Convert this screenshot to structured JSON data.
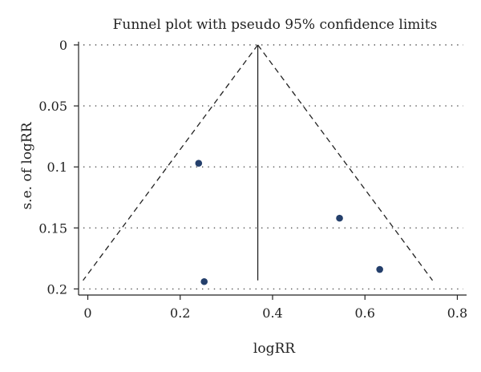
{
  "chart_data": {
    "type": "scatter",
    "title": "Funnel plot with pseudo 95% confidence limits",
    "xlabel": "logRR",
    "ylabel": "s.e. of logRR",
    "xlim": [
      -0.02,
      0.82
    ],
    "ylim": [
      0,
      0.205
    ],
    "y_inverted": true,
    "x_ticks": [
      "0",
      "0.2",
      "0.4",
      "0.6",
      "0.8"
    ],
    "x_tick_values": [
      0,
      0.2,
      0.4,
      0.6,
      0.8
    ],
    "y_ticks": [
      "0",
      "0.05",
      "0.1",
      "0.15",
      "0.2"
    ],
    "y_tick_values": [
      0,
      0.05,
      0.1,
      0.15,
      0.2
    ],
    "grid": "horizontal dotted",
    "pooled_estimate": 0.368,
    "confidence_limit_max_se": 0.193,
    "points": [
      {
        "x": 0.24,
        "y": 0.097
      },
      {
        "x": 0.252,
        "y": 0.194
      },
      {
        "x": 0.545,
        "y": 0.142
      },
      {
        "x": 0.632,
        "y": 0.184
      }
    ],
    "point_color": "#243f6b"
  }
}
